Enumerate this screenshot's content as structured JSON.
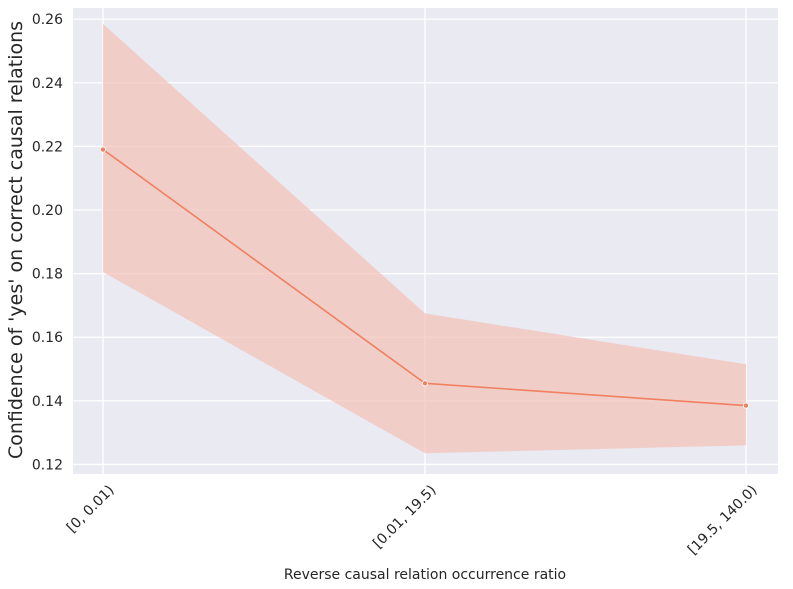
{
  "chart_data": {
    "type": "line",
    "title": "",
    "xlabel": "Reverse causal relation occurrence ratio",
    "ylabel": "Confidence of 'yes' on correct causal relations",
    "categories": [
      "[0, 0.01)",
      "[0.01, 19.5)",
      "[19.5, 140.0)"
    ],
    "series": [
      {
        "values": [
          0.219,
          0.1455,
          0.1385
        ],
        "ci_lower": [
          0.1805,
          0.1235,
          0.126
        ],
        "ci_upper": [
          0.2585,
          0.1675,
          0.1515
        ],
        "color": "#f08060",
        "band_color": "#f4c1b6"
      }
    ],
    "ylim": [
      0.117,
      0.2635
    ],
    "yticks": [
      "0.12",
      "0.14",
      "0.16",
      "0.18",
      "0.20",
      "0.22",
      "0.24",
      "0.26"
    ],
    "grid": true,
    "background": "#eaeaf2",
    "legend": "none"
  }
}
